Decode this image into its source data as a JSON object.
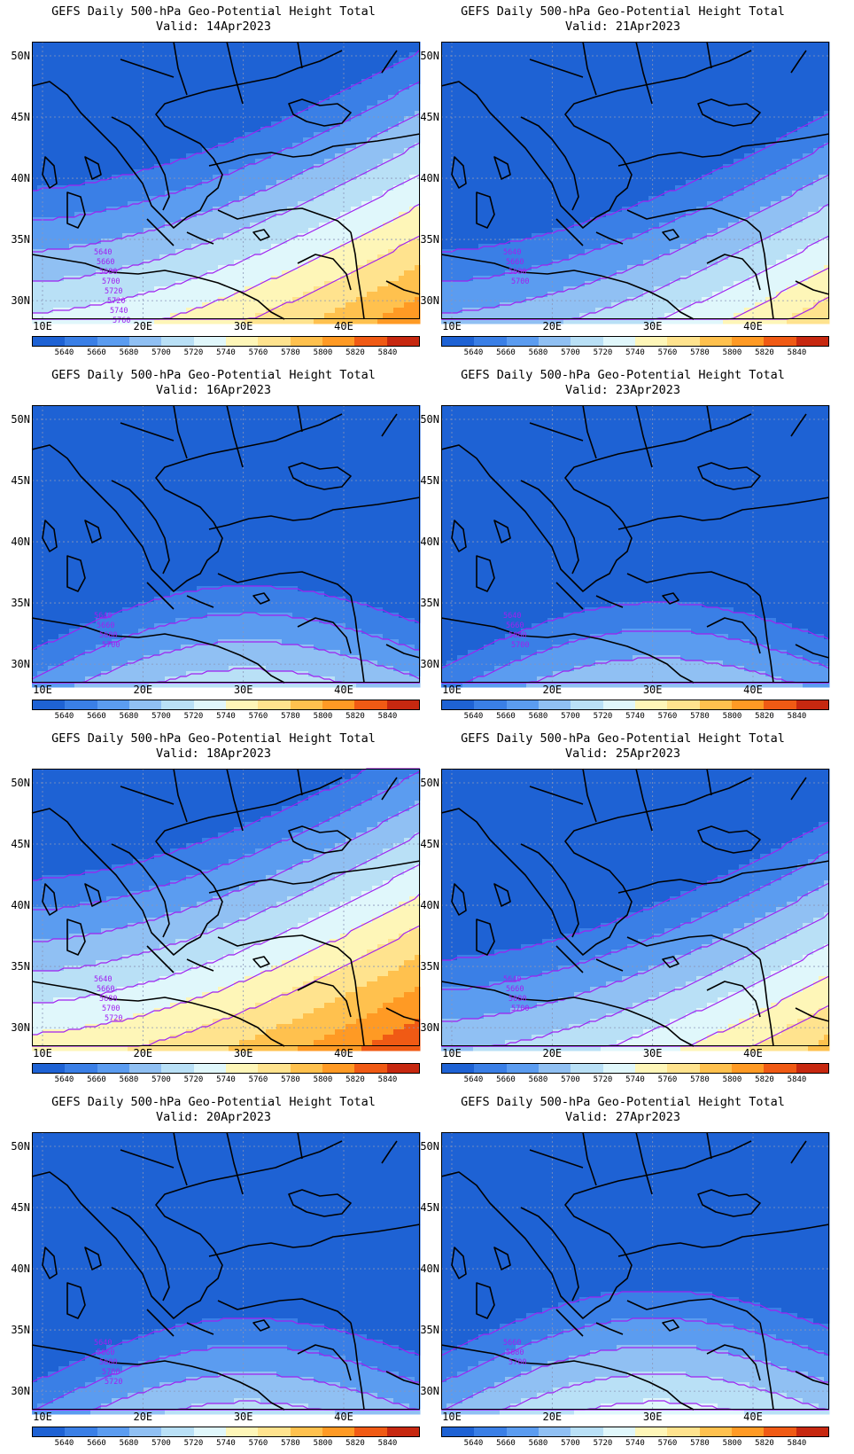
{
  "figure": {
    "title": "GEFS Daily 500-hPa Geo-Potential Height Total",
    "lat_labels": [
      "50N",
      "45N",
      "40N",
      "35N",
      "30N"
    ],
    "lon_labels": [
      "10E",
      "20E",
      "30E",
      "40E"
    ],
    "colorbar": {
      "labels": [
        "5640",
        "5660",
        "5680",
        "5700",
        "5720",
        "5740",
        "5760",
        "5780",
        "5800",
        "5820",
        "5840"
      ],
      "colors": [
        "#1e62d4",
        "#3a7fe6",
        "#5b9cf0",
        "#90c0f3",
        "#b9e0f6",
        "#e0f7fb",
        "#fef6b8",
        "#ffe38e",
        "#ffc14e",
        "#ff9a24",
        "#f05a14",
        "#c72810"
      ]
    }
  },
  "panels": [
    {
      "valid": "Valid: 14Apr2023",
      "shift": 0.55,
      "contour_labels": [
        "5640",
        "5660",
        "5680",
        "5700",
        "5720",
        "5720",
        "5740",
        "5760"
      ]
    },
    {
      "valid": "Valid: 16Apr2023",
      "shift": 0.25,
      "contour_labels": [
        "5640",
        "5660",
        "5680",
        "5700"
      ]
    },
    {
      "valid": "Valid: 18Apr2023",
      "shift": 0.85,
      "contour_labels": [
        "5640",
        "5660",
        "5680",
        "5700",
        "5720"
      ]
    },
    {
      "valid": "Valid: 20Apr2023",
      "shift": 0.2,
      "contour_labels": [
        "5640",
        "5660",
        "5680",
        "5700",
        "5720"
      ]
    },
    {
      "valid": "Valid: 21Apr2023",
      "shift": 0.05,
      "contour_labels": [
        "5640",
        "5660",
        "5680",
        "5700"
      ]
    },
    {
      "valid": "Valid: 23Apr2023",
      "shift": 0.1,
      "contour_labels": [
        "5640",
        "5660",
        "5680",
        "5700"
      ]
    },
    {
      "valid": "Valid: 25Apr2023",
      "shift": 0.2,
      "contour_labels": [
        "5640",
        "5660",
        "5680",
        "5700"
      ]
    },
    {
      "valid": "Valid: 27Apr2023",
      "shift": 0.45,
      "contour_labels": [
        "5660",
        "5680",
        "5700"
      ]
    }
  ]
}
